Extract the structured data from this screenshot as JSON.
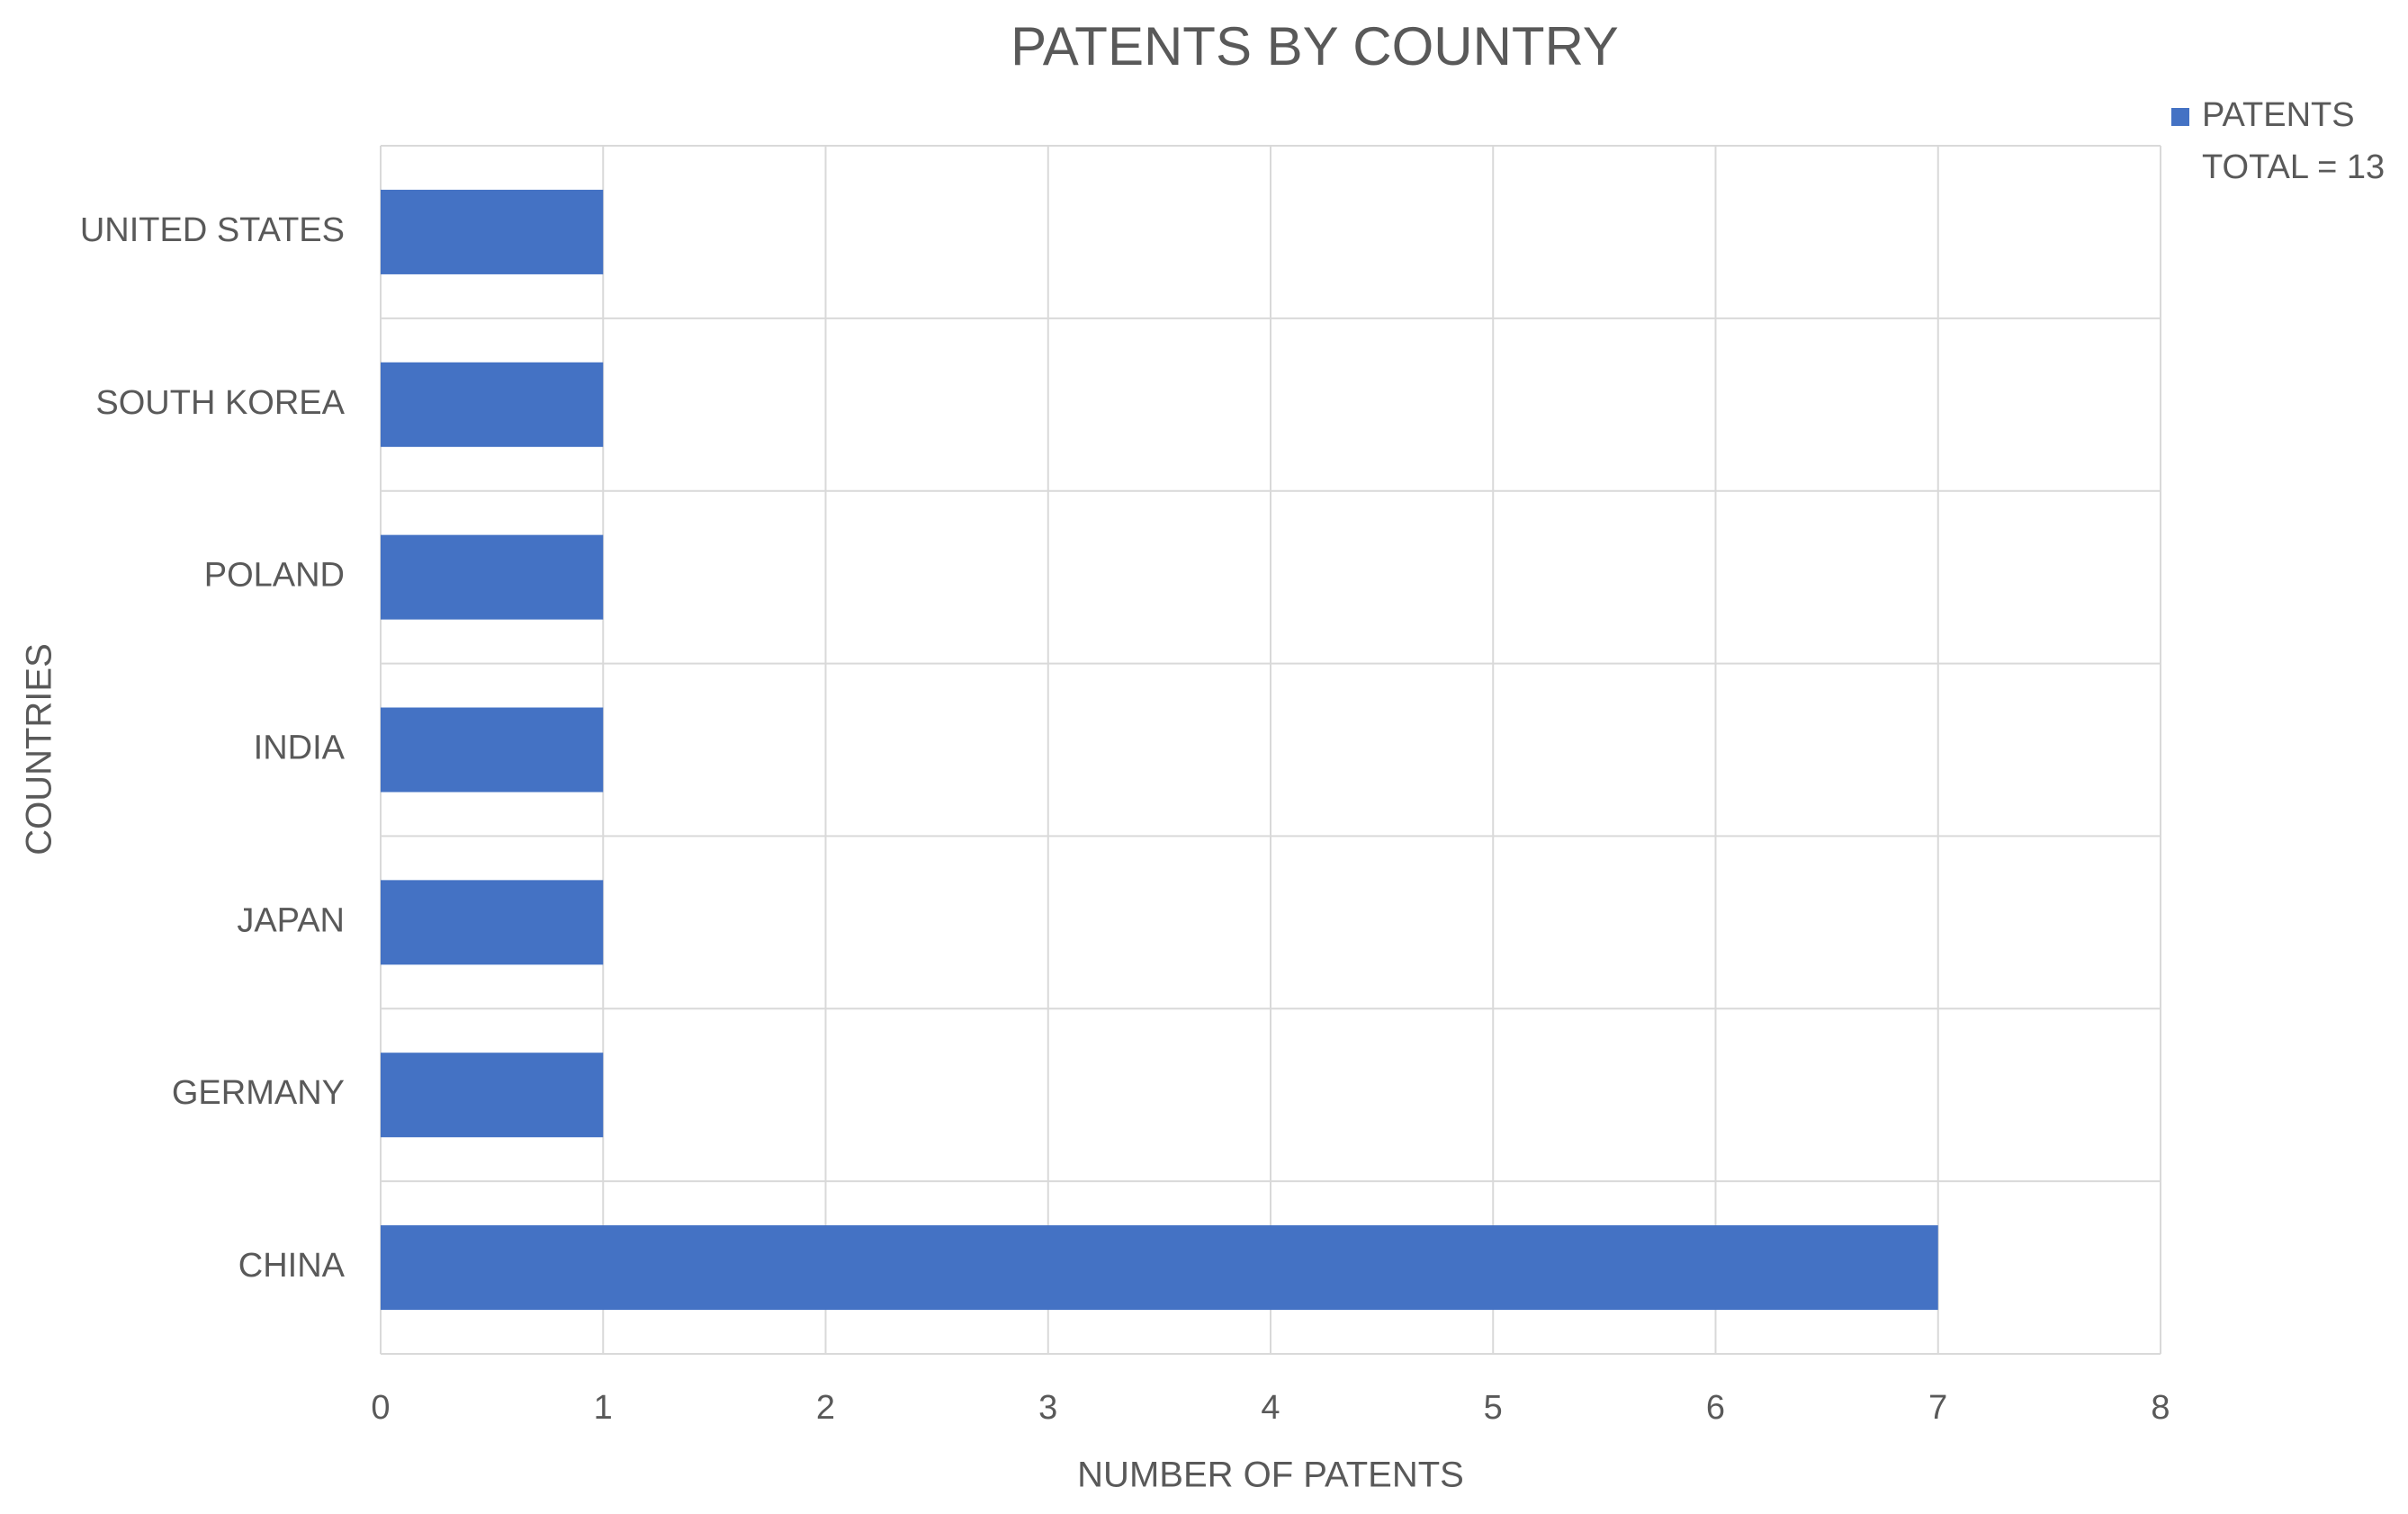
{
  "chart_data": {
    "type": "bar",
    "orientation": "horizontal",
    "title": "PATENTS BY COUNTRY",
    "x_label": "NUMBER OF PATENTS",
    "y_label": "COUNTRIES",
    "categories": [
      "UNITED STATES",
      "SOUTH KOREA",
      "POLAND",
      "INDIA",
      "JAPAN",
      "GERMANY",
      "CHINA"
    ],
    "series": [
      {
        "name": "PATENTS",
        "color": "#4472c4",
        "values": [
          1,
          1,
          1,
          1,
          1,
          1,
          7
        ]
      }
    ],
    "annotation": "TOTAL = 13",
    "xlim": [
      0,
      8
    ],
    "xticks": [
      0,
      1,
      2,
      3,
      4,
      5,
      6,
      7,
      8
    ],
    "grid": true,
    "legend": "top-right"
  }
}
